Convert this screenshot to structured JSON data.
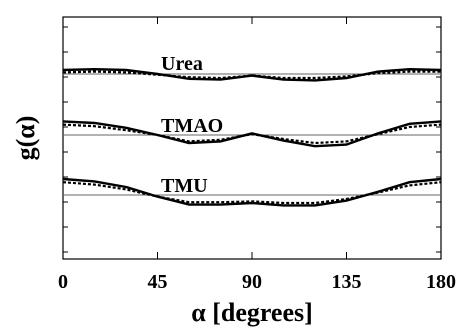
{
  "chart_data": {
    "type": "line",
    "title": "",
    "xlabel": "α [degrees]",
    "ylabel": "g(α)",
    "xlim": [
      0,
      180
    ],
    "xticks": [
      0,
      45,
      90,
      135,
      180
    ],
    "y_tick_labels_visible": false,
    "grid": false,
    "legend": "none",
    "line_styles": [
      "solid",
      "dashed"
    ],
    "series": [
      {
        "name": "Urea",
        "baseline": 0,
        "x": [
          0,
          15,
          30,
          45,
          60,
          75,
          90,
          105,
          120,
          135,
          150,
          165,
          180
        ],
        "solid": [
          0.05,
          0.06,
          0.05,
          0.0,
          -0.06,
          -0.07,
          -0.02,
          -0.07,
          -0.08,
          -0.05,
          0.03,
          0.06,
          0.05
        ],
        "dashed": [
          0.02,
          0.03,
          0.02,
          -0.01,
          -0.04,
          -0.05,
          -0.02,
          -0.05,
          -0.05,
          -0.03,
          0.01,
          0.03,
          0.03
        ]
      },
      {
        "name": "TMAO",
        "baseline": 0,
        "x": [
          0,
          15,
          30,
          45,
          60,
          75,
          90,
          105,
          120,
          135,
          150,
          165,
          180
        ],
        "solid": [
          0.17,
          0.15,
          0.09,
          0.0,
          -0.1,
          -0.08,
          0.02,
          -0.07,
          -0.14,
          -0.12,
          0.02,
          0.14,
          0.17
        ],
        "dashed": [
          0.13,
          0.11,
          0.06,
          0.0,
          -0.08,
          -0.06,
          0.01,
          -0.05,
          -0.1,
          -0.08,
          0.01,
          0.1,
          0.13
        ]
      },
      {
        "name": "TMU",
        "baseline": 0,
        "x": [
          0,
          15,
          30,
          45,
          60,
          75,
          90,
          105,
          120,
          135,
          150,
          165,
          180
        ],
        "solid": [
          0.2,
          0.17,
          0.1,
          -0.02,
          -0.12,
          -0.12,
          -0.1,
          -0.13,
          -0.13,
          -0.07,
          0.04,
          0.16,
          0.2
        ],
        "dashed": [
          0.16,
          0.13,
          0.07,
          -0.02,
          -0.09,
          -0.09,
          -0.08,
          -0.1,
          -0.1,
          -0.05,
          0.03,
          0.12,
          0.16
        ]
      }
    ]
  }
}
